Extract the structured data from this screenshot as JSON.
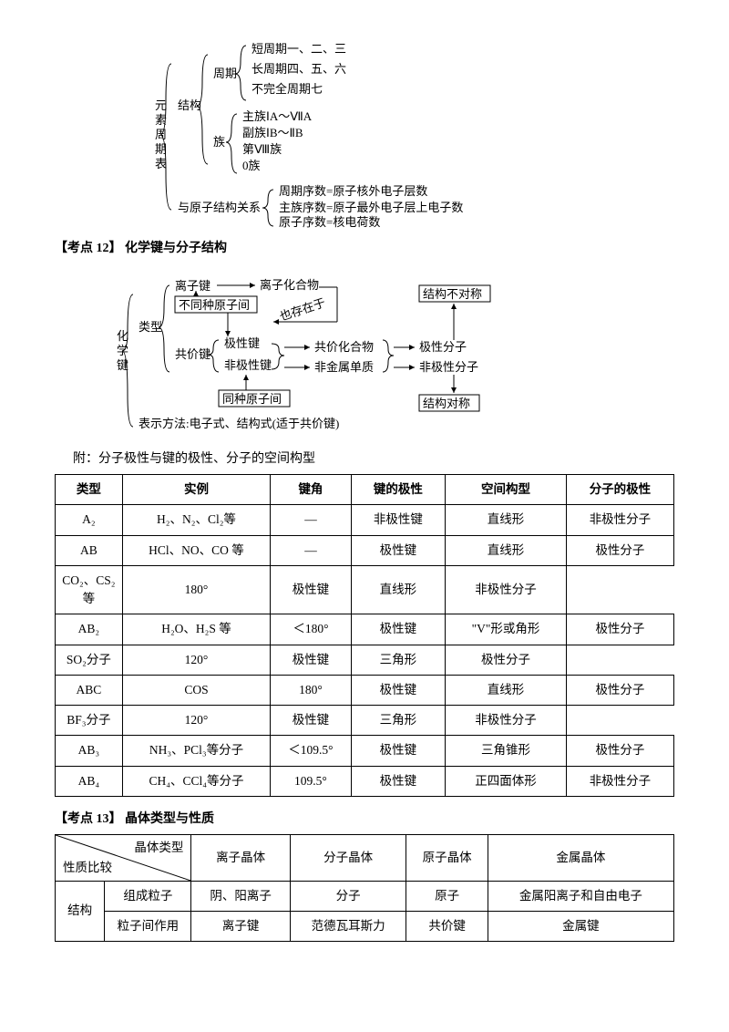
{
  "tree1": {
    "root": "元素周期表",
    "b1": "结构",
    "b2": "与原子结构关系",
    "b1a": "周期",
    "b1b": "族",
    "p1": "短周期一、二、三",
    "p2": "长周期四、五、六",
    "p3": "不完全周期七",
    "f1": "主族ⅠA～ⅦA",
    "f2": "副族ⅠB～ⅡB",
    "f3": "第Ⅷ族",
    "f4": "0族",
    "r1": "周期序数=原子核外电子层数",
    "r2": "主族序数=原子最外电子层上电子数",
    "r3": "原子序数=核电荷数"
  },
  "heading12": "【考点 12】 化学键与分子结构",
  "tree2": {
    "root": "化学键",
    "b1": "类型",
    "b2": "表示方法:电子式、结构式(适于共价键)",
    "ionic": "离子键",
    "cov": "共价键",
    "diff": "不同种原子间",
    "same": "同种原子间",
    "also": "也存在于",
    "polar": "极性键",
    "nonpolar": "非极性键",
    "ioncomp": "离子化合物",
    "covcomp": "共价化合物",
    "nonmetal": "非金属单质",
    "polmol": "极性分子",
    "nonpolmol": "非极性分子",
    "asym": "结构不对称",
    "sym": "结构对称"
  },
  "attach_note": "附：分子极性与键的极性、分子的空间构型",
  "table1": {
    "headers": [
      "类型",
      "实例",
      "键角",
      "键的极性",
      "空间构型",
      "分子的极性"
    ],
    "rows": [
      [
        "A₂",
        "H₂、N₂、Cl₂等",
        "—",
        "非极性键",
        "直线形",
        "非极性分子"
      ],
      [
        "AB",
        "HCl、NO、CO 等",
        "—",
        "极性键",
        "直线形",
        "极性分子"
      ],
      [
        "",
        "CO₂、CS₂等",
        "180°",
        "极性键",
        "直线形",
        "非极性分子"
      ],
      [
        "AB₂",
        "H₂O、H₂S 等",
        "＜180°",
        "极性键",
        "\"V\"形或角形",
        "极性分子"
      ],
      [
        "",
        "SO₂分子",
        "120°",
        "极性键",
        "三角形",
        "极性分子"
      ],
      [
        "ABC",
        "COS",
        "180°",
        "极性键",
        "直线形",
        "极性分子"
      ],
      [
        "",
        "BF₃分子",
        "120°",
        "极性键",
        "三角形",
        "非极性分子"
      ],
      [
        "AB₃",
        "NH₃、PCl₃等分子",
        "＜109.5°",
        "极性键",
        "三角锥形",
        "极性分子"
      ],
      [
        "AB₄",
        "CH₄、CCl₄等分子",
        "109.5°",
        "极性键",
        "正四面体形",
        "非极性分子"
      ]
    ]
  },
  "heading13": "【考点 13】  晶体类型与性质",
  "table2": {
    "diag_top": "晶体类型",
    "diag_bottom": "性质比较",
    "cols": [
      "离子晶体",
      "分子晶体",
      "原子晶体",
      "金属晶体"
    ],
    "rowgroup": "结构",
    "r1label": "组成粒子",
    "r1": [
      "阴、阳离子",
      "分子",
      "原子",
      "金属阳离子和自由电子"
    ],
    "r2label": "粒子间作用",
    "r2": [
      "离子键",
      "范德瓦耳斯力",
      "共价键",
      "金属键"
    ]
  }
}
